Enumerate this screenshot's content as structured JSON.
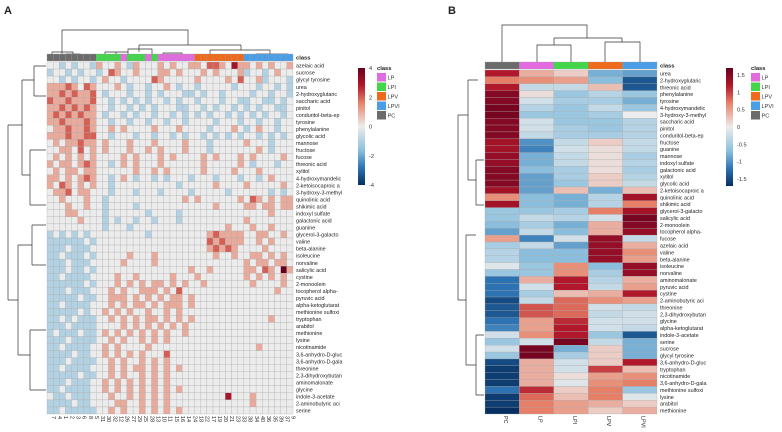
{
  "chart_data": [
    {
      "panel": "A",
      "type": "heatmap",
      "class_legend_title": "class",
      "classes": [
        {
          "name": "LP",
          "color": "#e36be0"
        },
        {
          "name": "LPI",
          "color": "#44d64a"
        },
        {
          "name": "LPV",
          "color": "#ef6a1a"
        },
        {
          "name": "LPVI",
          "color": "#4a9ee8"
        },
        {
          "name": "PC",
          "color": "#6b6b6b"
        }
      ],
      "colorbar_ticks": [
        "4",
        "2",
        "0",
        "-2",
        "-4"
      ],
      "color_range": [
        -4,
        4
      ],
      "columns": [
        "7",
        "4",
        "1",
        "2",
        "3",
        "6",
        "8",
        "5",
        "31",
        "30",
        "32",
        "12",
        "26",
        "27",
        "29",
        "25",
        "28",
        "13",
        "10",
        "11",
        "15",
        "16",
        "14",
        "24",
        "18",
        "22",
        "17",
        "19",
        "20",
        "21",
        "23",
        "33",
        "38",
        "34",
        "40",
        "36",
        "35",
        "39",
        "37",
        "9"
      ],
      "column_classes": [
        "PC",
        "PC",
        "PC",
        "PC",
        "PC",
        "PC",
        "PC",
        "PC",
        "LPI",
        "LPI",
        "LPI",
        "LPI",
        "LP",
        "LPI",
        "LPI",
        "LPI",
        "LP",
        "LPI",
        "LP",
        "LP",
        "LP",
        "LP",
        "LP",
        "LP",
        "LPV",
        "LPV",
        "LPV",
        "LPV",
        "LPV",
        "LPV",
        "LPV",
        "LPV",
        "LPVI",
        "LPVI",
        "LPVI",
        "LPVI",
        "LPVI",
        "LPVI",
        "LPVI",
        "LPVI"
      ],
      "rows": [
        "azelaic acid",
        "sucrose",
        "glycyl tyrosine",
        "urea",
        "2-hydroxyglutaric",
        "saccharic acid",
        "pinitol",
        "conduritol-beta-ep",
        "tyrosine",
        "phenylalanine",
        "glycolic acid",
        "mannose",
        "fructose",
        "fucose",
        "threonic acid",
        "xylitol",
        "4-hydroxymandelic",
        "2-ketoisocaproic a",
        "3-hydroxy-3-methyl",
        "quinolinic acid",
        "shikimic acid",
        "indoxyl sulfate",
        "galactonic acid",
        "guanine",
        "glycerol-3-galacto",
        "valine",
        "beta-alanine",
        "isoleucine",
        "norvaline",
        "salicylic acid",
        "cystine",
        "2-monoolein",
        "tocopherol alpha-",
        "pyruvic acid",
        "alpha-ketoglutarat",
        "methionine sulfoxi",
        "tryptophan",
        "arabitol",
        "methionine",
        "lysine",
        "nicotinamide",
        "3,6-anhydro-D-gluc",
        "3,6-anhydro-D-gala",
        "threonine",
        "2,3-dihydroxybutan",
        "aminomalonate",
        "glycine",
        "indole-3-acetate",
        "2-aminobutyric aci",
        "serine"
      ],
      "value_encoding": "each character d encodes value d-4",
      "values": [
        "4434344354454354445454455466547554545445",
        "3443434434654454445545444545444534434544",
        "4434344345443444465444445444454644534443",
        "5556546544454344344543443444443444344343",
        "5565655643444344343444334344344443443443",
        "6556555644343434344343443444344334433434",
        "5565656544344343434443344343443434344334",
        "5656565543443434434434343434434343434434",
        "5565556544344344344344344443444344344344",
        "4556556544545444454445444434445434544344",
        "5556556644344434434434344343434344343434",
        "4545565545444544454444544434444454443444",
        "4455464545444544545444544434444444543444",
        "4545454544445454445454444545444545444454",
        "5455456544345454445444444544444543444344",
        "4545545544444454454544444544445444544444",
        "5545456544345434434344434443444344345444",
        "5465454544344444444443444445444454444454",
        "4556455444344434443444434444434444443434",
        "4454445443444444444444545444444546545455",
        "4445445443444434444444444445444455455455",
        "4445544443444444344443444444444444445444",
        "4444454443434434434443444444444454444444",
        "4444444443444344444444444444454445445444",
        "3434343444444444344444444456555544554454",
        "3333334344444444444444444465655544545444",
        "3334333444444444444444444456565444454444",
        "3343334344444544454444444445445445545454",
        "3334333444445444454444444444444454554554",
        "3334334344444444444444454454444455465485",
        "3343333444454454444454445444444454545454",
        "3333334344454545455454544544444445444454",
        "3334333444545445554546444444444444444544",
        "3333343344555454545455454444444444444444",
        "3343333444545455454555454444444444444444",
        "3333343445454544544545444444444444444444",
        "3343433344545454554545454444444444445444",
        "3334333344445454545454544444444444444444",
        "3433343345454545454544544444444444444444",
        "3334333344545445454544444444444444444444",
        "3343333445454444544444444444444444544444",
        "3333433445454545444644444444444444444444",
        "3334333344545445454544444444444444444444",
        "3343333444545455454545444444444444444444",
        "3333343344545445454544444444444444444444",
        "3334333445454545454544444444444444444444",
        "3343333445454545454545444444444444444444",
        "4334333444544545454544444444474445444444",
        "3333433444455445454544444444444445444444",
        "3343333344545445454545444444444444444444"
      ]
    },
    {
      "panel": "B",
      "type": "heatmap",
      "class_legend_title": "class",
      "classes": [
        {
          "name": "LP",
          "color": "#e36be0"
        },
        {
          "name": "LPI",
          "color": "#44d64a"
        },
        {
          "name": "LPV",
          "color": "#ef6a1a"
        },
        {
          "name": "LPVI",
          "color": "#4a9ee8"
        },
        {
          "name": "PC",
          "color": "#6b6b6b"
        }
      ],
      "colorbar_ticks": [
        "1.5",
        "1",
        "0.5",
        "0",
        "-0.5",
        "-1",
        "-1.5"
      ],
      "color_range": [
        -1.7,
        1.7
      ],
      "columns": [
        "PC",
        "LP",
        "LPI",
        "LPV",
        "LPVI"
      ],
      "rows": [
        "urea",
        "2-hydroxyglutaric",
        "threonic acid",
        "phenylalanine",
        "tyrosine",
        "4-hydroxymandelic",
        "3-hydroxy-3-methyl",
        "saccharic acid",
        "pinitol",
        "conduritol-beta-ep",
        "fructose",
        "guanine",
        "mannose",
        "indoxyl sulfate",
        "galactonic acid",
        "xylitol",
        "glycolic acid",
        "2-ketoisocaproic a",
        "quinolinic acid",
        "shikimic acid",
        "glycerol-3-galacto",
        "salicylic acid",
        "2-monoolein",
        "tocopherol alpha-",
        "fucose",
        "azelaic acid",
        "valine",
        "beta-alanine",
        "isoleucine",
        "norvaline",
        "aminomalonate",
        "pyruvic acid",
        "cystine",
        "2-aminobutyric aci",
        "threonine",
        "2,3-dihydroxybutan",
        "glycine",
        "alpha-ketoglutarat",
        "indole-3-acetate",
        "serine",
        "sucrose",
        "glycyl tyrosine",
        "3,6-anhydro-D-gluc",
        "tryptophan",
        "nicotinamide",
        "3,6-anhydro-D-gala",
        "methionine sulfoxi",
        "lysine",
        "arabitol",
        "methionine"
      ],
      "values": [
        [
          1.2,
          0.4,
          0.2,
          -0.8,
          -0.9
        ],
        [
          0.7,
          0.6,
          0.5,
          -0.7,
          -1.4
        ],
        [
          1.2,
          -0.3,
          -0.3,
          0.3,
          -1.4
        ],
        [
          1.5,
          0.1,
          -0.6,
          -0.4,
          -0.6
        ],
        [
          1.5,
          -0.2,
          -0.5,
          -0.5,
          -0.8
        ],
        [
          1.6,
          -0.4,
          -0.6,
          -0.3,
          -0.6
        ],
        [
          1.6,
          -0.6,
          -0.6,
          -0.5,
          0.0
        ],
        [
          1.5,
          -0.2,
          -0.6,
          -0.6,
          -0.4
        ],
        [
          1.5,
          -0.2,
          -0.5,
          -0.6,
          -0.4
        ],
        [
          1.5,
          -0.3,
          -0.5,
          -0.5,
          -0.4
        ],
        [
          1.3,
          -1.0,
          -0.3,
          0.2,
          -0.3
        ],
        [
          1.3,
          -1.1,
          -0.2,
          0.1,
          -0.3
        ],
        [
          1.4,
          -0.8,
          -0.3,
          0.1,
          -0.5
        ],
        [
          1.4,
          -0.8,
          -0.3,
          0.1,
          -0.4
        ],
        [
          1.5,
          -0.7,
          -0.5,
          0.1,
          -0.5
        ],
        [
          1.5,
          -0.9,
          -0.5,
          0.2,
          -0.4
        ],
        [
          1.5,
          -0.9,
          -0.6,
          0.2,
          -0.3
        ],
        [
          1.3,
          -0.9,
          0.3,
          -0.8,
          0.3
        ],
        [
          0.6,
          -0.7,
          -0.8,
          -0.4,
          1.3
        ],
        [
          1.3,
          -0.7,
          -0.8,
          -0.4,
          0.7
        ],
        [
          -0.6,
          -0.6,
          -0.5,
          0.7,
          1.3
        ],
        [
          -0.6,
          -0.3,
          -0.4,
          -0.2,
          1.6
        ],
        [
          -0.7,
          -0.5,
          -0.8,
          0.4,
          1.5
        ],
        [
          -0.9,
          -0.3,
          -0.7,
          0.4,
          1.4
        ],
        [
          0.5,
          -1.1,
          -0.2,
          1.4,
          -0.3
        ],
        [
          -0.5,
          -0.3,
          -0.9,
          1.4,
          0.4
        ],
        [
          -0.4,
          -0.7,
          -0.7,
          1.4,
          0.6
        ],
        [
          -0.4,
          -0.7,
          -0.7,
          1.4,
          0.5
        ],
        [
          -0.1,
          -0.6,
          0.6,
          -0.7,
          1.4
        ],
        [
          -0.6,
          -0.6,
          0.6,
          -0.5,
          1.4
        ],
        [
          -1.2,
          0.4,
          1.2,
          -0.4,
          0.4
        ],
        [
          -1.2,
          -0.2,
          1.2,
          -0.3,
          0.5
        ],
        [
          -1.2,
          -0.5,
          0.3,
          0.4,
          1.2
        ],
        [
          -1.5,
          -0.3,
          0.8,
          0.6,
          0.5
        ],
        [
          -1.4,
          0.9,
          0.8,
          -0.2,
          -0.3
        ],
        [
          -1.4,
          0.9,
          0.8,
          -0.3,
          -0.2
        ],
        [
          -1.2,
          0.5,
          1.1,
          -0.2,
          -0.2
        ],
        [
          -1.1,
          0.5,
          1.2,
          -0.2,
          -0.3
        ],
        [
          -0.2,
          0.6,
          1.2,
          -0.6,
          -1.4
        ],
        [
          -0.6,
          -0.2,
          1.6,
          -0.3,
          -0.8
        ],
        [
          -0.2,
          1.6,
          -0.8,
          0.2,
          -0.8
        ],
        [
          -0.6,
          1.6,
          -0.5,
          0.2,
          -0.8
        ],
        [
          -1.5,
          0.4,
          -0.2,
          0.2,
          1.2
        ],
        [
          -1.6,
          0.4,
          -0.2,
          1.0,
          0.3
        ],
        [
          -1.6,
          0.4,
          0.1,
          0.5,
          0.6
        ],
        [
          -1.6,
          0.4,
          -0.1,
          0.6,
          0.7
        ],
        [
          -1.2,
          1.1,
          0.2,
          0.7,
          -0.6
        ],
        [
          -1.6,
          0.8,
          0.3,
          0.7,
          -0.1
        ],
        [
          -1.6,
          0.7,
          0.5,
          0.4,
          0.2
        ],
        [
          -1.7,
          0.7,
          0.5,
          0.2,
          0.4
        ]
      ]
    }
  ],
  "panel_labels": {
    "a": "A",
    "b": "B"
  }
}
